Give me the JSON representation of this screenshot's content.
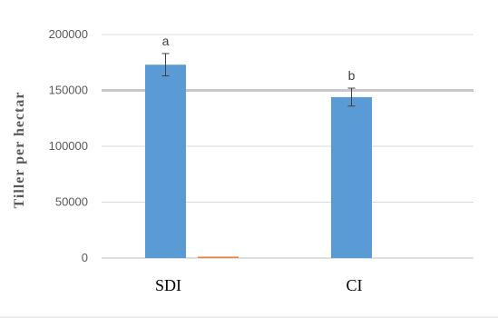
{
  "chart_data": {
    "type": "bar",
    "title": "",
    "xlabel": "",
    "ylabel": "Tiller per hectar",
    "categories": [
      "SDI",
      "CI"
    ],
    "series": [
      {
        "color": "#5b9bd5",
        "values": [
          173000,
          144000
        ],
        "error": [
          10000,
          8000
        ],
        "labels": [
          "a",
          "b"
        ]
      },
      {
        "color": "#ed7d31",
        "values": [
          900,
          0
        ]
      }
    ],
    "ylim": [
      0,
      200000
    ],
    "yticks": [
      0,
      50000,
      100000,
      150000,
      200000
    ],
    "ytick_labels": [
      "0",
      "50000",
      "100000",
      "150000",
      "200000"
    ],
    "grid": true,
    "legend": "none"
  }
}
